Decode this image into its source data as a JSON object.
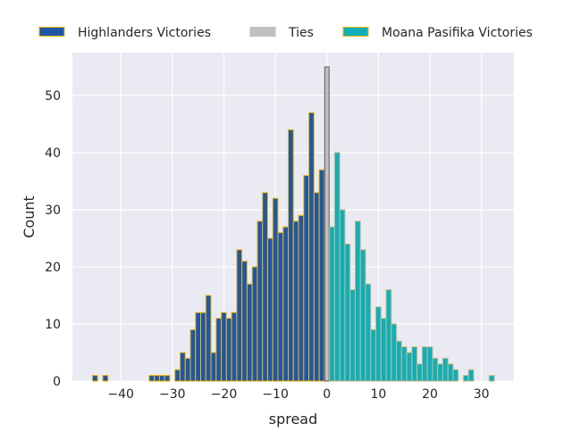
{
  "chart_data": {
    "type": "bar",
    "title": "",
    "xlabel": "spread",
    "ylabel": "Count",
    "xlim": [
      -49.4,
      36.3
    ],
    "ylim": [
      0,
      57.5
    ],
    "xticks": [
      -40,
      -30,
      -20,
      -10,
      0,
      10,
      20,
      30
    ],
    "xtick_labels": [
      "−40",
      "−30",
      "−20",
      "−10",
      "0",
      "10",
      "20",
      "30"
    ],
    "yticks": [
      0,
      10,
      20,
      30,
      40,
      50
    ],
    "ytick_labels": [
      "0",
      "10",
      "20",
      "30",
      "40",
      "50"
    ],
    "grid": true,
    "legend_position": "top",
    "series": [
      {
        "name": "Highlanders Victories",
        "color": "#1f57a8",
        "edge": "#f2b705",
        "x": [
          -45,
          -43,
          -34,
          -33,
          -32,
          -31,
          -29,
          -28,
          -27,
          -26,
          -25,
          -24,
          -23,
          -22,
          -21,
          -20,
          -19,
          -18,
          -17,
          -16,
          -15,
          -14,
          -13,
          -12,
          -11,
          -10,
          -9,
          -8,
          -7,
          -6,
          -5,
          -4,
          -3,
          -2,
          -1
        ],
        "values": [
          1,
          1,
          1,
          1,
          1,
          1,
          2,
          5,
          4,
          9,
          12,
          12,
          15,
          5,
          11,
          12,
          11,
          12,
          23,
          21,
          17,
          20,
          28,
          33,
          25,
          32,
          26,
          27,
          44,
          28,
          29,
          36,
          47,
          33,
          37
        ]
      },
      {
        "name": "Ties",
        "color": "#c0c0c0",
        "edge": "#5a5a5a",
        "x": [
          0
        ],
        "values": [
          55
        ]
      },
      {
        "name": "Moana Pasifika Victories",
        "color": "#0fafba",
        "edge": "#cdb98a",
        "x": [
          1,
          2,
          3,
          4,
          5,
          6,
          7,
          8,
          9,
          10,
          11,
          12,
          13,
          14,
          15,
          16,
          17,
          18,
          19,
          20,
          21,
          22,
          23,
          24,
          25,
          27,
          28,
          32
        ],
        "values": [
          27,
          40,
          30,
          24,
          16,
          28,
          23,
          17,
          9,
          13,
          11,
          16,
          10,
          7,
          6,
          5,
          6,
          3,
          6,
          6,
          4,
          3,
          4,
          3,
          2,
          1,
          2,
          1
        ]
      }
    ]
  }
}
